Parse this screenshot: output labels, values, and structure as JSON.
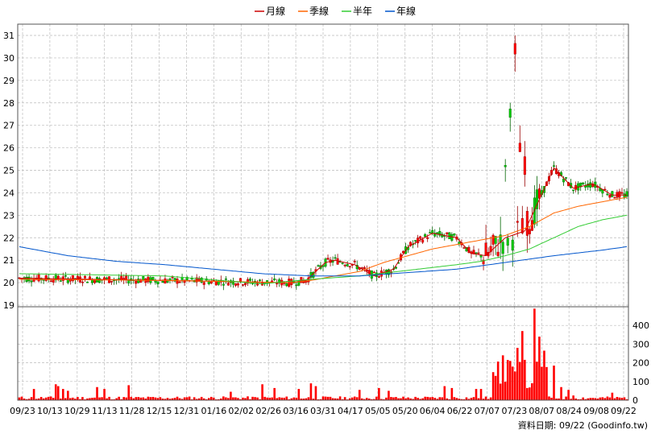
{
  "legend": [
    {
      "label": "月線",
      "color": "#cc0000"
    },
    {
      "label": "季線",
      "color": "#ff6600"
    },
    {
      "label": "半年",
      "color": "#33cc33"
    },
    {
      "label": "年線",
      "color": "#0055cc"
    }
  ],
  "source_note": "資料日期: 09/22  (Goodinfo.tw)",
  "chart_data": [
    {
      "type": "line",
      "title": "",
      "kind": "candlestick price chart with moving averages",
      "ylim": [
        19,
        31.5
      ],
      "y_ticks": [
        19,
        20,
        21,
        22,
        23,
        24,
        25,
        26,
        27,
        28,
        29,
        30,
        31
      ],
      "x_tick_labels": [
        "09/23",
        "10/13",
        "10/29",
        "11/13",
        "11/28",
        "12/15",
        "12/31",
        "01/16",
        "02/02",
        "02/26",
        "03/16",
        "03/31",
        "04/17",
        "05/05",
        "05/20",
        "06/04",
        "06/22",
        "07/07",
        "07/23",
        "08/07",
        "08/24",
        "09/08",
        "09/22"
      ],
      "grid": true,
      "candle_colors": {
        "up": "#ff0000",
        "down": "#00cc00"
      },
      "series": [
        {
          "name": "月線",
          "color": "#cc0000",
          "x": [
            0,
            60,
            112,
            118,
            126,
            130,
            138,
            146,
            154,
            160,
            170,
            180,
            186,
            192,
            200,
            208,
            220,
            228,
            236,
            244,
            250
          ],
          "values": [
            20.2,
            20.1,
            20.0,
            20.1,
            20.9,
            21.0,
            20.8,
            20.3,
            20.6,
            21.6,
            22.2,
            22.0,
            21.3,
            21.2,
            22.0,
            22.3,
            25.1,
            24.2,
            24.4,
            23.9,
            23.9
          ]
        },
        {
          "name": "季線",
          "color": "#ff6600",
          "x": [
            0,
            60,
            112,
            120,
            130,
            140,
            150,
            160,
            170,
            180,
            190,
            200,
            210,
            220,
            230,
            240,
            250
          ],
          "values": [
            20.15,
            20.1,
            20.0,
            20.1,
            20.3,
            20.5,
            20.9,
            21.2,
            21.5,
            21.7,
            21.9,
            22.1,
            22.5,
            23.1,
            23.4,
            23.6,
            23.8
          ]
        },
        {
          "name": "半年",
          "color": "#33cc33",
          "x": [
            0,
            60,
            100,
            120,
            140,
            160,
            180,
            190,
            200,
            210,
            220,
            230,
            240,
            250
          ],
          "values": [
            20.4,
            20.3,
            19.95,
            20.15,
            20.3,
            20.55,
            20.8,
            20.95,
            21.2,
            21.5,
            22.0,
            22.5,
            22.8,
            23.0
          ]
        },
        {
          "name": "年線",
          "color": "#0055cc",
          "x": [
            0,
            20,
            40,
            60,
            80,
            100,
            120,
            140,
            160,
            180,
            200,
            220,
            240,
            250
          ],
          "values": [
            21.6,
            21.2,
            20.95,
            20.8,
            20.6,
            20.4,
            20.3,
            20.3,
            20.45,
            20.6,
            20.9,
            21.2,
            21.45,
            21.6
          ]
        }
      ]
    },
    {
      "type": "bar",
      "title": "",
      "ylim": [
        0,
        500
      ],
      "y_ticks": [
        0,
        100,
        200,
        300,
        400
      ],
      "bar_color": "#ff0000",
      "x_range": [
        0,
        250
      ],
      "shape": {
        "base": 12,
        "idx": [
          6,
          15,
          16,
          18,
          20,
          32,
          35,
          45,
          85,
          87,
          100,
          105,
          115,
          120,
          122,
          140,
          148,
          152,
          175,
          178,
          188,
          190,
          195,
          196,
          199,
          202,
          205,
          207,
          212,
          214,
          216,
          220,
          223,
          226,
          228,
          244
        ],
        "vals": [
          60,
          85,
          75,
          60,
          50,
          70,
          60,
          80,
          15,
          45,
          85,
          65,
          60,
          90,
          75,
          55,
          65,
          50,
          75,
          65,
          60,
          60,
          150,
          130,
          240,
          210,
          280,
          370,
          490,
          340,
          265,
          185,
          70,
          55,
          25,
          40
        ]
      }
    }
  ]
}
